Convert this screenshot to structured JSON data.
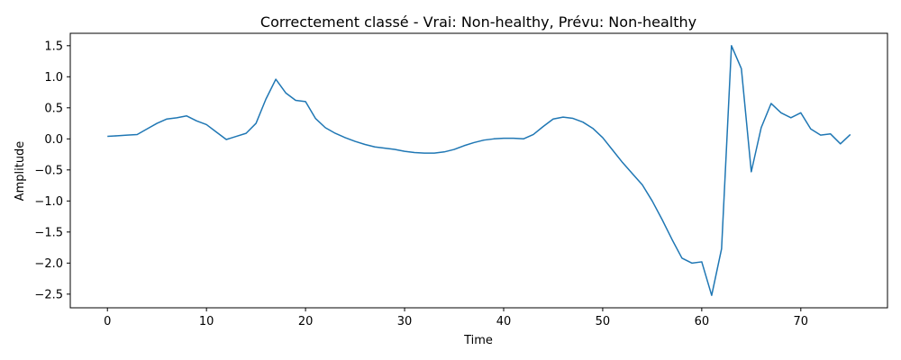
{
  "chart_data": {
    "type": "line",
    "title": "Correctement classé - Vrai: Non-healthy, Prévu: Non-healthy",
    "xlabel": "Time",
    "ylabel": "Amplitude",
    "xlim": [
      -3.75,
      78.75
    ],
    "ylim": [
      -2.72,
      1.7
    ],
    "xticks": [
      0,
      10,
      20,
      30,
      40,
      50,
      60,
      70
    ],
    "yticks": [
      1.5,
      1.0,
      0.5,
      0.0,
      -0.5,
      -1.0,
      -1.5,
      -2.0,
      -2.5
    ],
    "ytick_labels": [
      "1.5",
      "1.0",
      "0.5",
      "0.0",
      "−0.5",
      "−1.0",
      "−1.5",
      "−2.0",
      "−2.5"
    ],
    "grid": false,
    "series": [
      {
        "color": "#1f77b4",
        "x": [
          0,
          1,
          2,
          3,
          4,
          5,
          6,
          7,
          8,
          9,
          10,
          11,
          12,
          13,
          14,
          15,
          16,
          17,
          18,
          19,
          20,
          21,
          22,
          23,
          24,
          25,
          26,
          27,
          28,
          29,
          30,
          31,
          32,
          33,
          34,
          35,
          36,
          37,
          38,
          39,
          40,
          41,
          42,
          43,
          44,
          45,
          46,
          47,
          48,
          49,
          50,
          51,
          52,
          53,
          54,
          55,
          56,
          57,
          58,
          59,
          60,
          61,
          62,
          63,
          64,
          65,
          66,
          67,
          68,
          69,
          70,
          71,
          72,
          73,
          74,
          75
        ],
        "y": [
          0.04,
          0.05,
          0.06,
          0.07,
          0.16,
          0.25,
          0.32,
          0.34,
          0.37,
          0.29,
          0.23,
          0.11,
          -0.01,
          0.04,
          0.09,
          0.25,
          0.64,
          0.96,
          0.74,
          0.62,
          0.6,
          0.33,
          0.18,
          0.09,
          0.02,
          -0.04,
          -0.09,
          -0.13,
          -0.15,
          -0.17,
          -0.2,
          -0.22,
          -0.23,
          -0.23,
          -0.21,
          -0.17,
          -0.11,
          -0.06,
          -0.02,
          0.0,
          0.01,
          0.01,
          0.0,
          0.07,
          0.2,
          0.32,
          0.35,
          0.33,
          0.27,
          0.17,
          0.02,
          -0.18,
          -0.38,
          -0.56,
          -0.74,
          -1.0,
          -1.3,
          -1.62,
          -1.92,
          -2.0,
          -1.98,
          -2.52,
          -1.77,
          1.5,
          1.13,
          -0.53,
          0.18,
          0.57,
          0.42,
          0.34,
          0.42,
          0.16,
          0.06,
          0.08,
          -0.08,
          0.07
        ]
      }
    ]
  }
}
